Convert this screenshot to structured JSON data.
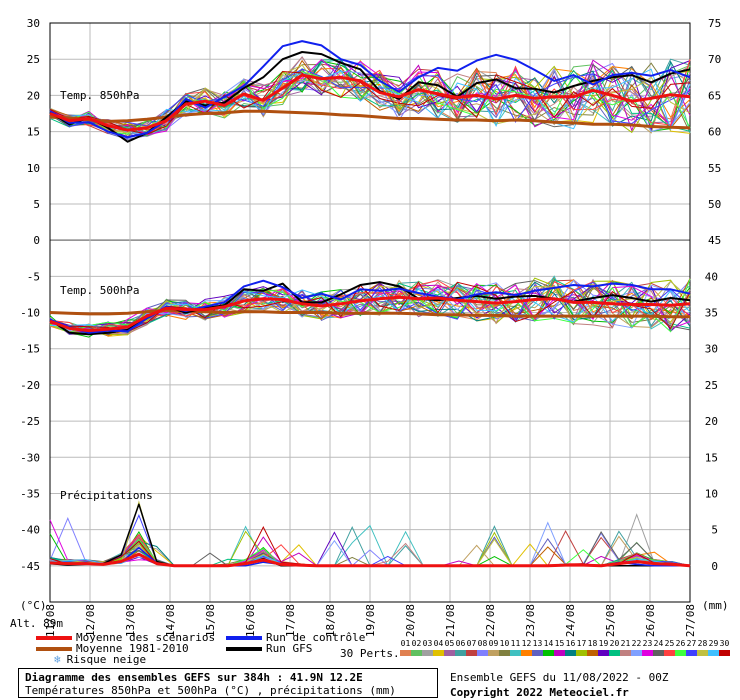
{
  "chart_data": {
    "type": "line",
    "title": "Diagramme des ensembles GEFS sur 384h : 41.9N 12.2E",
    "subtitle": "Températures 850hPa et 500hPa (°C) , précipitations (mm)",
    "left_axis": {
      "unit": "(°C)",
      "ticks": [
        30,
        25,
        20,
        15,
        10,
        5,
        0,
        -5,
        -10,
        -15,
        -20,
        -25,
        -30,
        -35,
        -40,
        -45
      ],
      "range": [
        -50,
        30
      ]
    },
    "right_axis_upper": {
      "ticks": [
        75,
        70,
        65,
        60,
        55,
        50,
        45
      ]
    },
    "right_axis_lower": {
      "unit": "(mm)",
      "ticks": [
        40,
        35,
        30,
        25,
        20,
        15,
        10,
        5,
        0
      ]
    },
    "x_ticks": [
      "11/08",
      "12/08",
      "13/08",
      "14/08",
      "15/08",
      "16/08",
      "17/08",
      "18/08",
      "19/08",
      "20/08",
      "21/08",
      "22/08",
      "23/08",
      "24/08",
      "25/08",
      "26/08",
      "27/08"
    ],
    "panel_labels": {
      "t850": "Temp. 850hPa",
      "t500": "Temp. 500hPa",
      "precip": "Précipitations"
    },
    "altitude": "Alt. 89m",
    "t850_mean_scenarios": [
      17.5,
      16.5,
      16.8,
      15.8,
      15.2,
      15.5,
      16.5,
      18.8,
      19.2,
      18.6,
      20.2,
      19.3,
      21.0,
      22.8,
      22.3,
      22.5,
      22.0,
      20.4,
      19.8,
      20.8,
      20.2,
      19.7,
      20.0,
      19.5,
      20.0,
      19.6,
      19.8,
      19.8,
      20.7,
      20.0,
      19.2,
      19.6,
      20.1,
      19.8
    ],
    "t850_climatology": [
      17.0,
      16.9,
      16.6,
      16.4,
      16.5,
      16.7,
      17.0,
      17.3,
      17.5,
      17.6,
      17.8,
      17.8,
      17.7,
      17.6,
      17.5,
      17.3,
      17.2,
      17.0,
      16.8,
      16.8,
      16.7,
      16.6,
      16.6,
      16.5,
      16.6,
      16.5,
      16.3,
      16.2,
      16.0,
      16.0,
      15.9,
      15.7,
      15.6,
      15.5
    ],
    "t850_control": [
      17.8,
      16.2,
      16.3,
      15.0,
      14.2,
      14.8,
      16.5,
      19.5,
      18.3,
      19.8,
      21.3,
      24.0,
      26.8,
      27.5,
      26.9,
      25.0,
      24.2,
      22.0,
      20.5,
      22.5,
      23.8,
      23.4,
      24.8,
      25.6,
      24.9,
      23.5,
      22.0,
      22.8,
      21.5,
      22.8,
      23.1,
      22.7,
      23.5,
      22.5
    ],
    "t850_gfs": [
      17.6,
      16.0,
      16.9,
      15.5,
      13.6,
      14.8,
      17.0,
      19.2,
      18.6,
      19.0,
      21.0,
      22.5,
      25.0,
      26.0,
      25.7,
      24.5,
      23.6,
      20.6,
      19.5,
      21.8,
      21.4,
      19.8,
      21.7,
      22.2,
      21.0,
      20.9,
      20.4,
      21.3,
      22.0,
      22.5,
      22.8,
      21.8,
      23.0,
      23.6
    ],
    "t500_mean_scenarios": [
      -11.2,
      -12.2,
      -12.5,
      -12.3,
      -12.0,
      -10.5,
      -9.4,
      -9.6,
      -9.6,
      -9.2,
      -8.4,
      -8.1,
      -8.2,
      -8.8,
      -9.1,
      -8.8,
      -8.4,
      -8.1,
      -7.9,
      -8.1,
      -8.0,
      -8.3,
      -8.5,
      -8.7,
      -8.5,
      -8.2,
      -8.1,
      -8.6,
      -8.6,
      -8.8,
      -8.9,
      -8.9,
      -9.0,
      -8.8
    ],
    "t500_climatology": [
      -10.0,
      -10.1,
      -10.2,
      -10.2,
      -10.1,
      -9.9,
      -9.7,
      -9.8,
      -9.9,
      -10.0,
      -9.9,
      -9.9,
      -10.0,
      -10.0,
      -10.0,
      -10.1,
      -10.1,
      -10.1,
      -10.1,
      -10.2,
      -10.3,
      -10.3,
      -10.4,
      -10.4,
      -10.5,
      -10.5,
      -10.5,
      -10.5,
      -10.5,
      -10.5,
      -10.5,
      -10.5,
      -10.6,
      -10.6
    ],
    "t500_control": [
      -11.0,
      -12.0,
      -12.8,
      -12.5,
      -12.6,
      -10.8,
      -9.2,
      -9.8,
      -9.2,
      -8.6,
      -6.4,
      -5.6,
      -6.5,
      -8.0,
      -7.4,
      -8.2,
      -6.8,
      -7.0,
      -6.7,
      -7.3,
      -7.8,
      -8.2,
      -7.5,
      -7.2,
      -7.6,
      -7.0,
      -6.6,
      -6.2,
      -6.4,
      -6.0,
      -6.2,
      -6.8,
      -6.8,
      -7.4
    ],
    "t500_gfs": [
      -11.0,
      -12.8,
      -13.0,
      -12.8,
      -12.4,
      -10.8,
      -9.2,
      -10.0,
      -9.4,
      -9.0,
      -6.8,
      -7.0,
      -6.0,
      -8.6,
      -8.6,
      -7.5,
      -6.2,
      -5.8,
      -6.4,
      -8.1,
      -8.3,
      -8.0,
      -7.7,
      -8.1,
      -7.8,
      -7.7,
      -8.1,
      -8.5,
      -8.0,
      -7.6,
      -8.0,
      -8.5,
      -8.0,
      -8.3
    ],
    "precip_mean_scenarios": [
      0.4,
      0.3,
      0.3,
      0.2,
      0.6,
      1.6,
      0.3,
      0.0,
      0.0,
      0.0,
      0.0,
      0.3,
      0.8,
      0.2,
      0.1,
      0.0,
      0.0,
      0.0,
      0.0,
      0.0,
      0.0,
      0.0,
      0.0,
      0.0,
      0.0,
      0.0,
      0.0,
      0.0,
      0.0,
      0.1,
      0.1,
      0.0,
      0.3,
      0.6,
      0.3,
      0.2,
      0.0
    ],
    "precip_control": [
      0.5,
      0.2,
      0.4,
      0.2,
      0.5,
      2.5,
      0.4,
      0.0,
      0.0,
      0.0,
      0.0,
      0.0,
      0.5,
      0.2,
      0.0,
      0.0,
      0.0,
      0.0,
      0.0,
      0.0,
      0.0,
      0.0,
      0.0,
      0.0,
      0.0,
      0.0,
      0.0,
      0.0,
      0.0,
      0.0,
      0.0,
      0.0,
      0.5,
      0.2,
      0.0,
      0.0,
      0.0
    ],
    "precip_gfs": [
      0.3,
      0.1,
      0.2,
      0.3,
      1.5,
      8.5,
      0.6,
      0.0,
      0.0,
      0.0,
      0.0,
      0.2,
      1.0,
      0.0,
      0.0,
      0.0,
      0.0,
      0.0,
      0.0,
      0.0,
      0.0,
      0.0,
      0.0,
      0.0,
      0.0,
      0.0,
      0.0,
      0.0,
      0.0,
      0.0,
      0.0,
      0.0,
      0.0,
      0.0,
      0.0,
      0.0,
      0.0
    ],
    "perturbation_count": "30 Perts.",
    "perturbations": [
      "01",
      "02",
      "03",
      "04",
      "05",
      "06",
      "07",
      "08",
      "09",
      "10",
      "11",
      "12",
      "13",
      "14",
      "15",
      "16",
      "17",
      "18",
      "19",
      "20",
      "21",
      "22",
      "23",
      "24",
      "25",
      "26",
      "27",
      "28",
      "29",
      "30"
    ],
    "perturbation_colors": [
      "#e08050",
      "#60c060",
      "#a0a0a0",
      "#e0c000",
      "#a060a0",
      "#40a0a0",
      "#c04040",
      "#8080ff",
      "#c0a060",
      "#808040",
      "#40c0c0",
      "#ff8000",
      "#6060c0",
      "#00c000",
      "#c000c0",
      "#008080",
      "#a0c000",
      "#c06000",
      "#6000c0",
      "#00c080",
      "#c08080",
      "#80a0ff",
      "#e000e0",
      "#606060",
      "#ff4040",
      "#40ff40",
      "#4040ff",
      "#c0c040",
      "#40c0ff",
      "#c00000"
    ]
  },
  "colors": {
    "mean_scenarios": "#ee1111",
    "climatology": "#b05010",
    "control": "#1020ee",
    "gfs": "#000000",
    "grid": "#bbbbbb",
    "snow": "#60a0e0"
  },
  "legend": {
    "mean_scenarios": "Moyenne des scénarios",
    "climatology": "Moyenne 1981-2010",
    "snow": "Risque neige",
    "control": "Run de contrôle",
    "gfs": "Run GFS"
  },
  "footer": {
    "title": "Diagramme des ensembles GEFS sur 384h : 41.9N 12.2E",
    "subtitle": "Températures 850hPa et 500hPa (°C) , précipitations (mm)",
    "run": "Ensemble GEFS du 11/08/2022 - 00Z",
    "copyright": "Copyright 2022 Meteociel.fr"
  }
}
